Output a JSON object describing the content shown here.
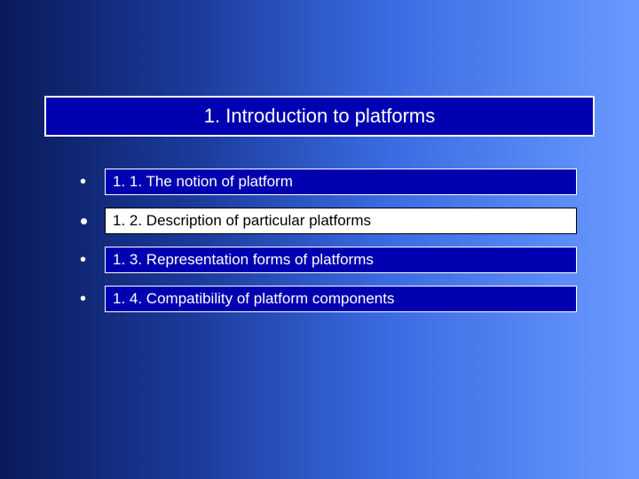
{
  "colors": {
    "bg_gradient_stops": [
      "#0a1a5a",
      "#1a3a9a",
      "#3a6ae0",
      "#6a9aff"
    ],
    "box_fill": "#0000b0",
    "box_border": "#ffffff",
    "highlight_fill": "#ffffff",
    "highlight_text": "#000000",
    "text": "#ffffff"
  },
  "title": {
    "text": "1. Introduction to platforms",
    "fontsize": 22
  },
  "items": [
    {
      "label": "1. 1. The notion of platform",
      "highlighted": false
    },
    {
      "label": "1. 2. Description of particular platforms",
      "highlighted": true
    },
    {
      "label": "1. 3. Representation forms of platforms",
      "highlighted": false
    },
    {
      "label": "1. 4. Compatibility of platform components",
      "highlighted": false
    }
  ],
  "bullet_char": "•"
}
